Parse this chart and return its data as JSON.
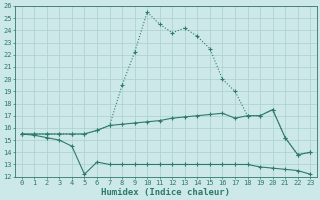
{
  "xlabel": "Humidex (Indice chaleur)",
  "x": [
    0,
    1,
    2,
    3,
    4,
    5,
    6,
    7,
    8,
    9,
    10,
    11,
    12,
    13,
    14,
    15,
    16,
    17,
    18,
    19,
    20,
    21,
    22,
    23
  ],
  "line1": [
    15.5,
    15.5,
    15.5,
    15.5,
    15.5,
    15.5,
    15.8,
    16.2,
    19.5,
    22.2,
    25.5,
    24.5,
    23.8,
    24.2,
    23.5,
    22.5,
    20.0,
    19.0,
    17.0,
    17.0,
    17.5,
    15.2,
    13.8,
    14.0
  ],
  "line2": [
    15.5,
    15.5,
    15.5,
    15.5,
    15.5,
    15.5,
    15.8,
    16.2,
    16.3,
    16.4,
    16.5,
    16.6,
    16.8,
    16.9,
    17.0,
    17.1,
    17.2,
    16.8,
    17.0,
    17.0,
    17.5,
    15.2,
    13.8,
    14.0
  ],
  "line3": [
    15.5,
    15.4,
    15.2,
    15.0,
    14.5,
    12.2,
    13.2,
    13.0,
    13.0,
    13.0,
    13.0,
    13.0,
    13.0,
    13.0,
    13.0,
    13.0,
    13.0,
    13.0,
    13.0,
    12.8,
    12.7,
    12.6,
    12.5,
    12.2
  ],
  "line_color": "#2d7a6a",
  "bg_color": "#cde8e8",
  "grid_color": "#aacfcf",
  "ylim": [
    12,
    26
  ],
  "xlim": [
    -0.5,
    23.5
  ],
  "yticks": [
    12,
    13,
    14,
    15,
    16,
    17,
    18,
    19,
    20,
    21,
    22,
    23,
    24,
    25,
    26
  ],
  "xticks": [
    0,
    1,
    2,
    3,
    4,
    5,
    6,
    7,
    8,
    9,
    10,
    11,
    12,
    13,
    14,
    15,
    16,
    17,
    18,
    19,
    20,
    21,
    22,
    23
  ],
  "tick_fontsize": 5.0,
  "label_fontsize": 6.5
}
